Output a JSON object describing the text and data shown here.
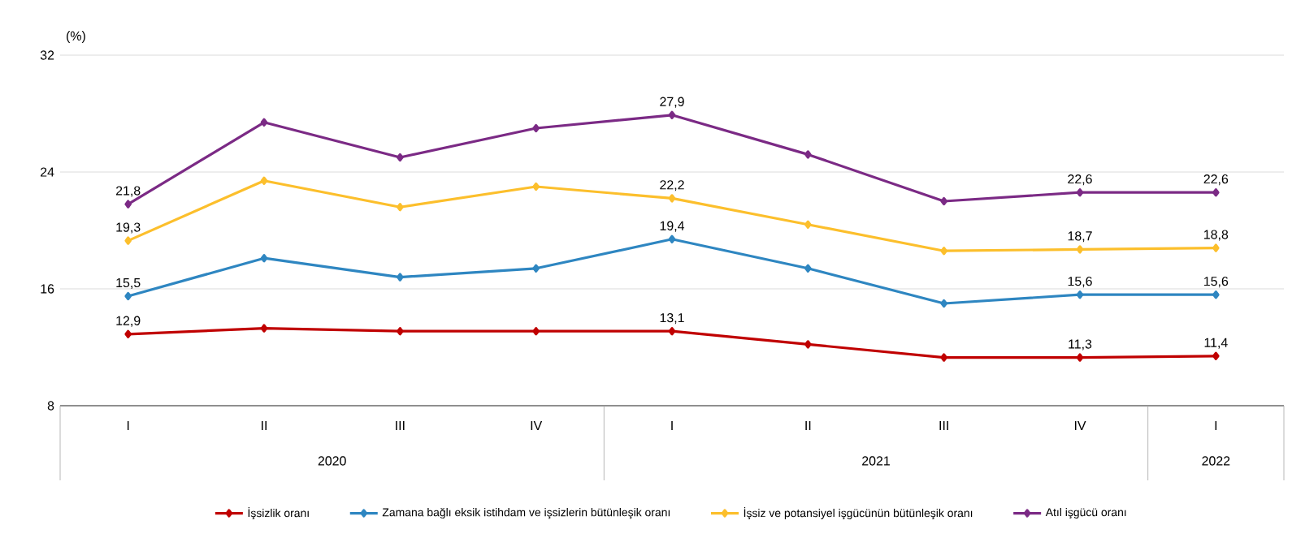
{
  "chart_data": {
    "type": "line",
    "ylabel": "(%)",
    "categories": [
      "I",
      "II",
      "III",
      "IV",
      "I",
      "II",
      "III",
      "IV",
      "I"
    ],
    "annotations": [
      "2020",
      "2021",
      "2022"
    ],
    "ylim": [
      8,
      32
    ],
    "yticks": [
      8,
      16,
      24,
      32
    ],
    "grid": "y",
    "legend": "bottom",
    "marker": "diamond",
    "line_style": "solid",
    "series": [
      {
        "name": "İşsizlik oranı",
        "color": "#c00000",
        "values": [
          12.9,
          13.3,
          13.1,
          13.1,
          13.1,
          12.2,
          11.3,
          11.3,
          11.4
        ],
        "value_labels": [
          "12,9",
          null,
          null,
          null,
          "13,1",
          null,
          null,
          "11,3",
          "11,4"
        ]
      },
      {
        "name": "Zamana bağlı eksik istihdam ve işsizlerin bütünleşik oranı",
        "color": "#2e86c1",
        "values": [
          15.5,
          18.1,
          16.8,
          17.4,
          19.4,
          17.4,
          15.0,
          15.6,
          15.6
        ],
        "value_labels": [
          "15,5",
          null,
          null,
          null,
          "19,4",
          null,
          null,
          "15,6",
          "15,6"
        ]
      },
      {
        "name": "İşsiz ve potansiyel işgücünün bütünleşik oranı",
        "color": "#fcbf2c",
        "values": [
          19.3,
          23.4,
          21.6,
          23.0,
          22.2,
          20.4,
          18.6,
          18.7,
          18.8
        ],
        "value_labels": [
          "19,3",
          null,
          null,
          null,
          "22,2",
          null,
          null,
          "18,7",
          "18,8"
        ]
      },
      {
        "name": "Atıl işgücü oranı",
        "color": "#7b2a85",
        "values": [
          21.8,
          27.4,
          25.0,
          27.0,
          27.9,
          25.2,
          22.0,
          22.6,
          22.6
        ],
        "value_labels": [
          "21,8",
          null,
          null,
          null,
          "27,9",
          null,
          null,
          "22,6",
          "22,6"
        ]
      }
    ]
  }
}
